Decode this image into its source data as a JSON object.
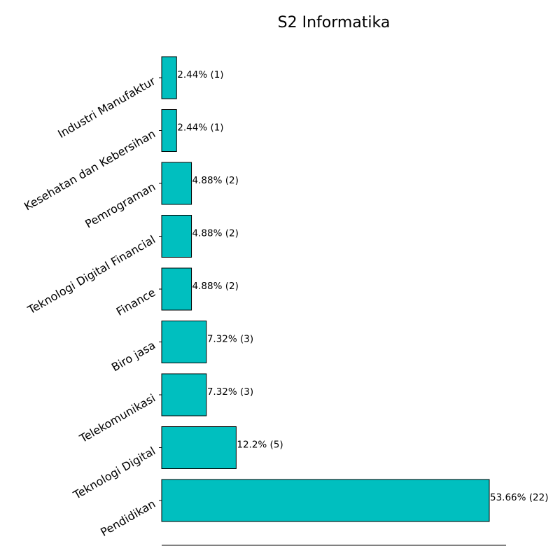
{
  "chart_data": {
    "type": "bar",
    "orientation": "horizontal",
    "title": "S2 Informatika",
    "xlabel": "",
    "ylabel": "",
    "categories": [
      "Pendidikan",
      "Teknologi Digital",
      "Telekomunikasi",
      "Biro jasa",
      "Finance",
      "Teknologi Digital Financial",
      "Pemrograman",
      "Kesehatan dan Kebersihan",
      "Industri Manufaktur"
    ],
    "values": [
      22,
      5,
      3,
      3,
      2,
      2,
      2,
      1,
      1
    ],
    "data_labels": [
      "53.66% (22)",
      "12.2% (5)",
      "7.32% (3)",
      "7.32% (3)",
      "4.88% (2)",
      "4.88% (2)",
      "4.88% (2)",
      "2.44% (1)",
      "2.44% (1)"
    ],
    "grid": false,
    "colors": {
      "bar_fill": "#00bfbf",
      "bar_edge": "#000000"
    }
  }
}
